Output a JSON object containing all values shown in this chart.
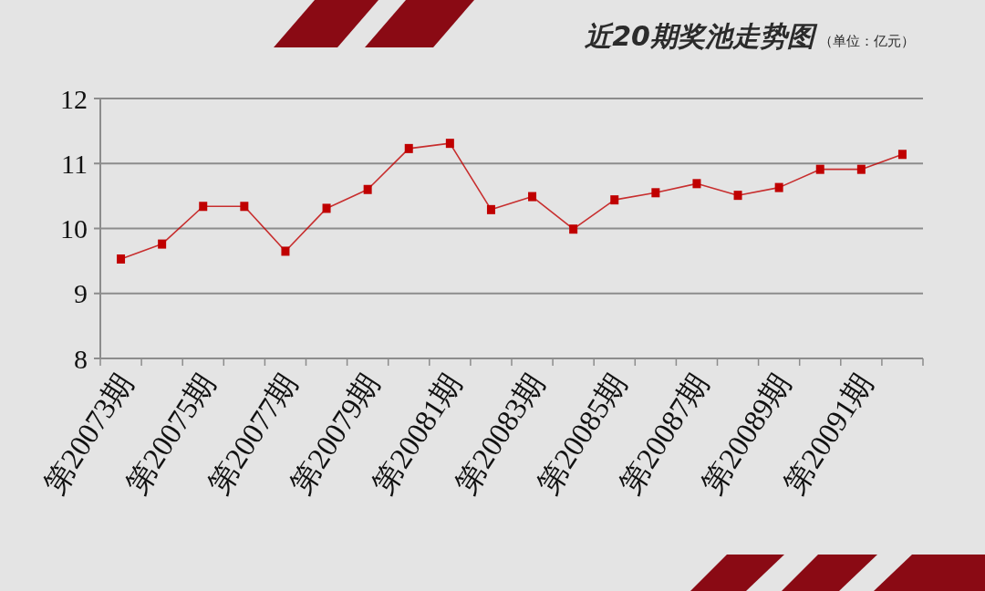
{
  "chart_data": {
    "type": "line",
    "title": "近20期奖池走势图",
    "subtitle": "（单位：亿元）",
    "categories": [
      "第20073期",
      null,
      "第20075期",
      null,
      "第20077期",
      null,
      "第20079期",
      null,
      "第20081期",
      null,
      "第20083期",
      null,
      "第20085期",
      null,
      "第20087期",
      null,
      "第20089期",
      null,
      "第20091期",
      null
    ],
    "series": [
      {
        "color": "#c00000",
        "values": [
          9.53,
          9.76,
          10.34,
          10.34,
          9.65,
          10.31,
          10.6,
          11.23,
          11.31,
          10.29,
          10.49,
          9.99,
          10.44,
          10.55,
          10.69,
          10.51,
          10.63,
          10.91,
          10.91,
          11.14
        ]
      }
    ],
    "ylim": [
      8,
      12
    ],
    "yticks": [
      8,
      9,
      10,
      11,
      12
    ],
    "grid": "y",
    "marker": "square",
    "line_style": "solid"
  }
}
